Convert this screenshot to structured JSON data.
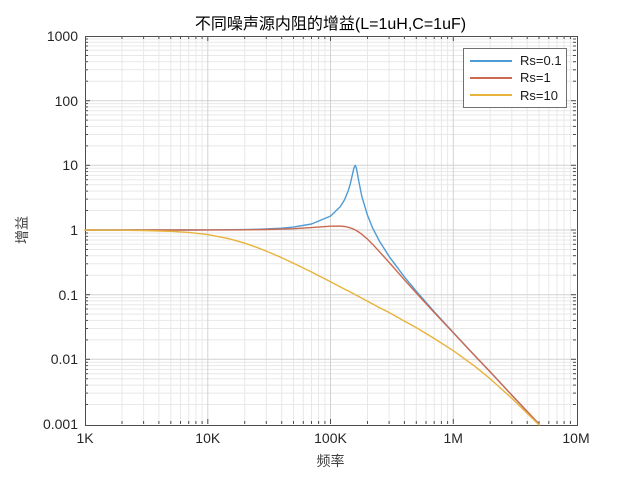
{
  "figure": {
    "background": "#ffffff"
  },
  "colors": {
    "axis_box": "#4d4d4d",
    "tick": "#4d4d4d",
    "grid_major": "#d2d2d2",
    "grid_minor": "#e8e8e8",
    "text": "#262626"
  },
  "chart_data": {
    "type": "line",
    "title": "不同噪声源内阻的增益(L=1uH,C=1uF)",
    "xlabel": "频率",
    "ylabel": "增益",
    "x_scale": "log",
    "y_scale": "log",
    "xlim": [
      1000,
      10000000
    ],
    "ylim": [
      0.001,
      1000
    ],
    "x_tick_values": [
      1000,
      10000,
      100000,
      1000000,
      10000000
    ],
    "x_tick_labels": [
      "1K",
      "10K",
      "100K",
      "1M",
      "10M"
    ],
    "y_tick_values": [
      1000,
      100,
      10,
      1,
      0.1,
      0.01,
      0.001
    ],
    "y_tick_labels": [
      "1000",
      "100",
      "10",
      "1",
      "0.1",
      "0.01",
      "0.001"
    ],
    "grid": "major and minor log grid on",
    "legend_position": "top-right inside axes",
    "x": [
      1000,
      2000,
      3000,
      5000,
      7000,
      10000,
      15000,
      20000,
      25000,
      30000,
      40000,
      50000,
      70000,
      100000,
      120000,
      130000,
      140000,
      145000,
      150000,
      155000,
      159000,
      162000,
      165000,
      170000,
      180000,
      200000,
      220000,
      250000,
      300000,
      400000,
      500000,
      700000,
      1000000,
      1500000,
      2000000,
      3000000,
      5000000
    ],
    "series": [
      {
        "name": "Rs=0.1",
        "color": "#4e9bd5",
        "values": [
          1.0,
          1.0,
          1.0,
          1.0,
          1.0,
          1.004,
          1.009,
          1.016,
          1.025,
          1.037,
          1.067,
          1.109,
          1.238,
          1.643,
          2.283,
          2.918,
          4.12,
          5.19,
          6.84,
          9.08,
          10.0,
          9.26,
          7.82,
          5.655,
          3.321,
          1.687,
          1.086,
          0.678,
          0.391,
          0.188,
          0.113,
          0.0545,
          0.026,
          0.0114,
          0.0064,
          0.0028,
          0.001
        ]
      },
      {
        "name": "Rs=1",
        "color": "#cb6a50",
        "values": [
          1.0,
          1.0,
          1.0,
          1.0,
          1.0,
          1.002,
          1.004,
          1.008,
          1.012,
          1.018,
          1.031,
          1.048,
          1.089,
          1.146,
          1.151,
          1.134,
          1.101,
          1.079,
          1.054,
          1.025,
          1.001,
          0.982,
          0.962,
          0.928,
          0.858,
          0.723,
          0.604,
          0.465,
          0.315,
          0.17,
          0.106,
          0.053,
          0.0257,
          0.0113,
          0.0064,
          0.0028,
          0.001
        ]
      },
      {
        "name": "Rs=10",
        "color": "#e8b33c",
        "values": [
          0.998,
          0.992,
          0.983,
          0.955,
          0.917,
          0.849,
          0.731,
          0.626,
          0.541,
          0.472,
          0.373,
          0.306,
          0.224,
          0.158,
          0.132,
          0.122,
          0.114,
          0.11,
          0.106,
          0.103,
          0.1,
          0.098,
          0.096,
          0.094,
          0.088,
          0.079,
          0.072,
          0.063,
          0.053,
          0.039,
          0.031,
          0.021,
          0.0136,
          0.0078,
          0.005,
          0.0025,
          0.00097
        ]
      }
    ]
  }
}
